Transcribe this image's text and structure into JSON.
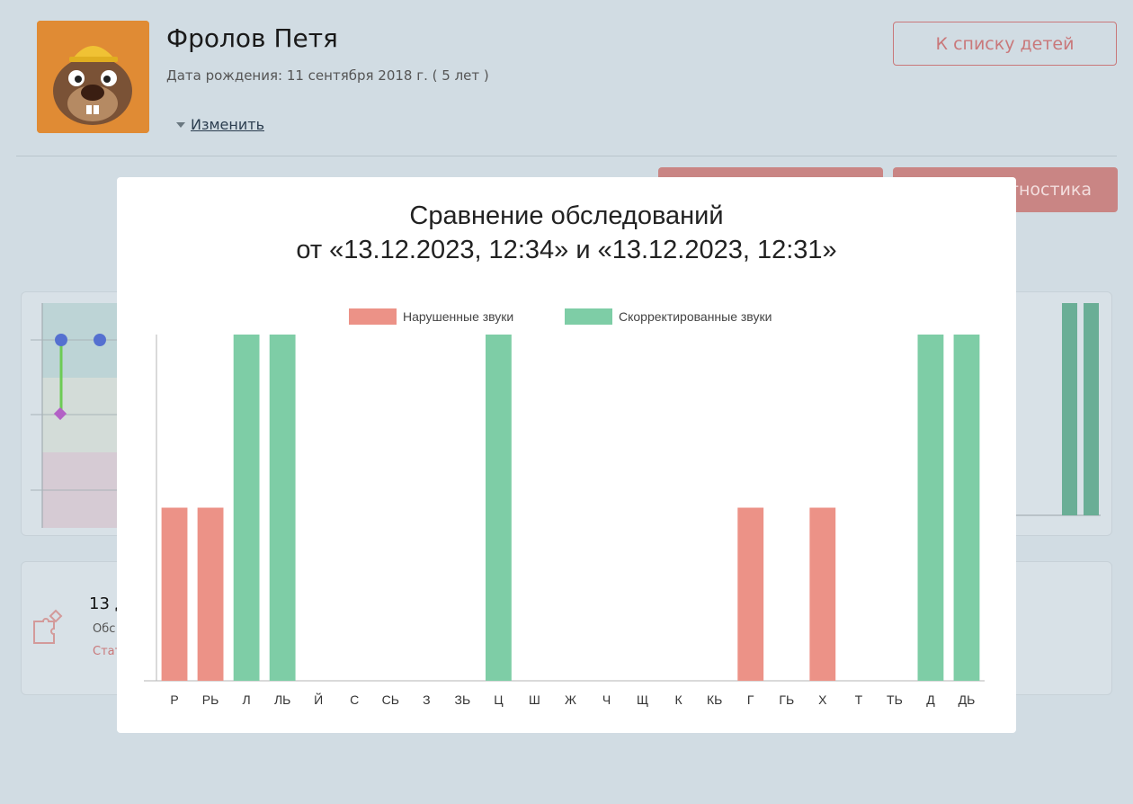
{
  "profile": {
    "name": "Фролов Петя",
    "birth": "Дата рождения: 11 сентября 2018 г. ( 5 лет )",
    "edit_label": "Изменить",
    "avatar_icon": "beaver-avatar-icon"
  },
  "nav": {
    "back_label": "К списку детей",
    "diagnostics_label": "тностика"
  },
  "info_card": {
    "title": "13 д",
    "line1": "Обс",
    "line2": "Стат",
    "icon": "puzzle-icon"
  },
  "modal": {
    "title_line1": "Сравнение обследований",
    "title_line2": "от «13.12.2023, 12:34» и «13.12.2023, 12:31»"
  },
  "colors": {
    "impaired": "#ec9287",
    "corrected": "#7ecda6",
    "accent": "#c9787a"
  },
  "chart_data": {
    "type": "bar",
    "categories": [
      "Р",
      "РЬ",
      "Л",
      "ЛЬ",
      "Й",
      "С",
      "СЬ",
      "З",
      "ЗЬ",
      "Ц",
      "Ш",
      "Ж",
      "Ч",
      "Щ",
      "К",
      "КЬ",
      "Г",
      "ГЬ",
      "Х",
      "Т",
      "ТЬ",
      "Д",
      "ДЬ"
    ],
    "series": [
      {
        "name": "Нарушенные звуки",
        "color": "#ec9287",
        "values": [
          1,
          1,
          0,
          0,
          0,
          0,
          0,
          0,
          0,
          0,
          0,
          0,
          0,
          0,
          0,
          0,
          1,
          0,
          1,
          0,
          0,
          0,
          0
        ]
      },
      {
        "name": "Скорректированные звуки",
        "color": "#7ecda6",
        "values": [
          0,
          0,
          2,
          2,
          0,
          0,
          0,
          0,
          0,
          2,
          0,
          0,
          0,
          0,
          0,
          0,
          0,
          0,
          0,
          0,
          0,
          2,
          2
        ]
      }
    ],
    "ylim": [
      0,
      2
    ],
    "grid": false,
    "legend": "top-center",
    "title": "Сравнение обследований от «13.12.2023, 12:34» и «13.12.2023, 12:31»"
  }
}
